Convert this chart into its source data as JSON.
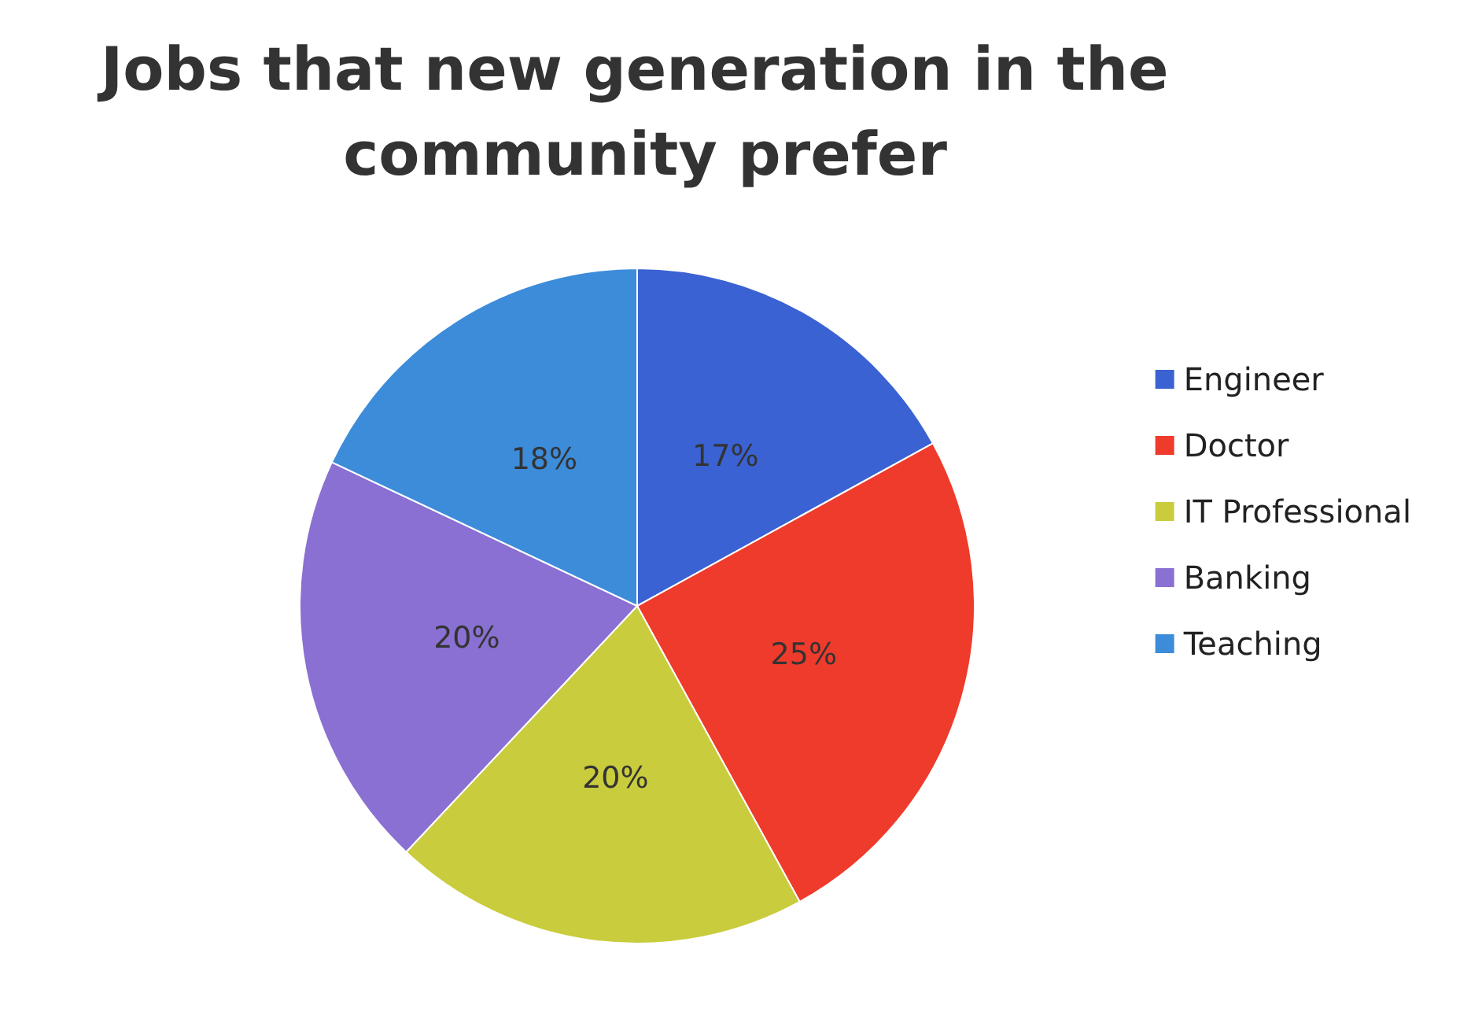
{
  "chart_data": {
    "type": "pie",
    "title": "Jobs that new generation in the community prefer",
    "categories": [
      "Engineer",
      "Doctor",
      "IT Professional",
      "Banking",
      "Teaching"
    ],
    "values": [
      17,
      25,
      20,
      20,
      18
    ],
    "value_labels": [
      "17%",
      "25%",
      "20%",
      "20%",
      "18%"
    ],
    "colors": [
      "#3a62d2",
      "#ee3b2b",
      "#c9cc3c",
      "#8a70d2",
      "#3c8cda"
    ],
    "legend": "right"
  }
}
